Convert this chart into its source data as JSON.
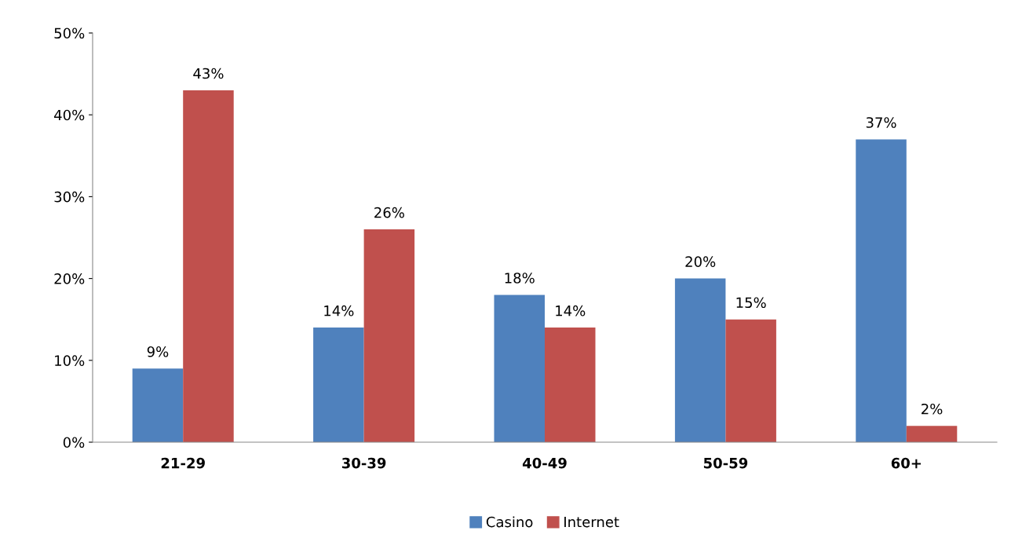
{
  "chart_data": {
    "type": "bar",
    "categories": [
      "21-29",
      "30-39",
      "40-49",
      "50-59",
      "60+"
    ],
    "series": [
      {
        "name": "Casino",
        "color": "#4f81bd",
        "values": [
          9,
          14,
          18,
          20,
          37
        ],
        "value_labels": [
          "9%",
          "14%",
          "18%",
          "20%",
          "37%"
        ]
      },
      {
        "name": "Internet",
        "color": "#c0504d",
        "values": [
          43,
          26,
          14,
          15,
          2
        ],
        "value_labels": [
          "43%",
          "26%",
          "14%",
          "15%",
          "2%"
        ]
      }
    ],
    "ylim": [
      0,
      50
    ],
    "yticks": [
      {
        "value": 0,
        "label": "0%"
      },
      {
        "value": 10,
        "label": "10%"
      },
      {
        "value": 20,
        "label": "20%"
      },
      {
        "value": 30,
        "label": "30%"
      },
      {
        "value": 40,
        "label": "40%"
      },
      {
        "value": 50,
        "label": "50%"
      }
    ],
    "grid": false,
    "legend": "bottom"
  }
}
